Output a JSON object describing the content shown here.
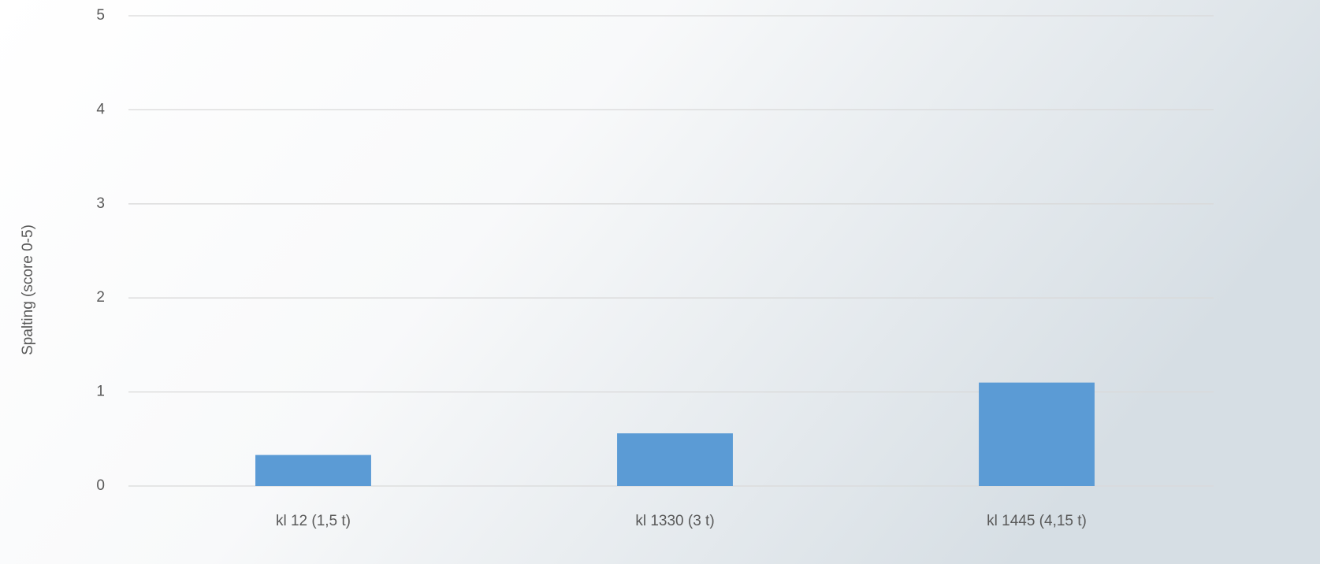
{
  "chart_data": {
    "type": "bar",
    "y_axis_label": "Spalting (score 0-5)",
    "categories": [
      "kl 12 (1,5 t)",
      "kl 1330 (3 t)",
      "kl 1445 (4,15 t)"
    ],
    "values": [
      0.33,
      0.56,
      1.1
    ],
    "color": "#5b9bd5",
    "ylim": [
      0,
      5
    ],
    "yticks": [
      0,
      1,
      2,
      3,
      4,
      5
    ],
    "grid": true
  }
}
